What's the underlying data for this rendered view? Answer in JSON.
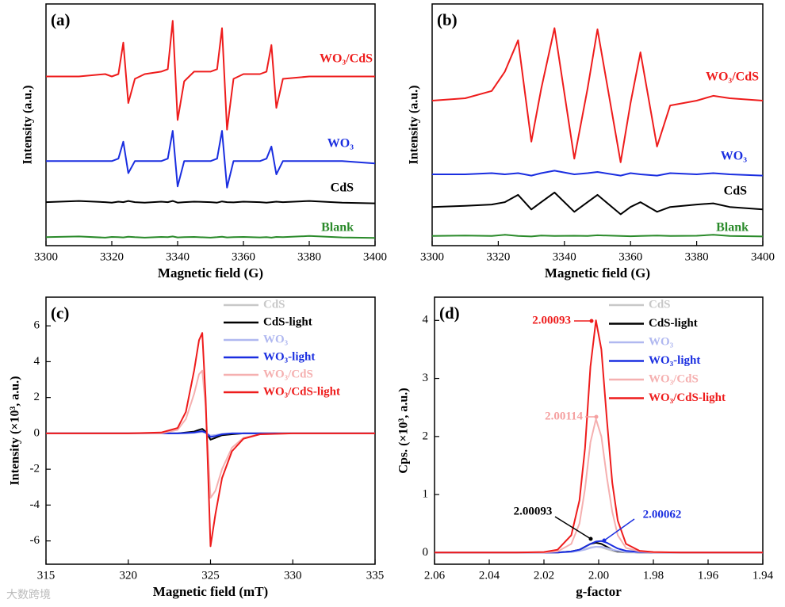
{
  "chart_data": [
    {
      "type": "line",
      "panel": "(a)",
      "xlabel": "Magnetic field (G)",
      "ylabel": "Intensity (a.u.)",
      "legend": "inline",
      "x": [
        3300,
        3310,
        3318,
        3320,
        3322,
        3323.5,
        3325,
        3327,
        3330,
        3335,
        3337,
        3338.5,
        3340,
        3342,
        3345,
        3350,
        3352,
        3353.5,
        3355,
        3357,
        3360,
        3365,
        3367,
        3368.5,
        3370,
        3372,
        3380,
        3390,
        3400
      ],
      "xlim": [
        3300,
        3400
      ],
      "xticks": [
        3300,
        3320,
        3340,
        3360,
        3380,
        3400
      ],
      "ylim": [
        0,
        10
      ],
      "series": [
        {
          "name": "WO₃/CdS",
          "color": "#ee1c1c",
          "values": [
            7.0,
            7.0,
            7.1,
            7.0,
            7.1,
            8.4,
            5.9,
            6.9,
            7.1,
            7.2,
            7.3,
            9.3,
            5.2,
            6.8,
            7.2,
            7.2,
            7.3,
            9.0,
            4.8,
            6.9,
            7.1,
            7.1,
            7.2,
            8.3,
            5.7,
            6.9,
            7.0,
            7.0,
            7.0
          ]
        },
        {
          "name": "WO₃",
          "color": "#1a2ee0",
          "values": [
            3.5,
            3.5,
            3.5,
            3.5,
            3.6,
            4.3,
            3.0,
            3.5,
            3.5,
            3.5,
            3.6,
            4.75,
            2.45,
            3.5,
            3.5,
            3.5,
            3.6,
            4.75,
            2.4,
            3.5,
            3.5,
            3.5,
            3.6,
            4.1,
            2.95,
            3.5,
            3.5,
            3.5,
            3.4
          ]
        },
        {
          "name": "CdS",
          "color": "#000000",
          "values": [
            1.8,
            1.85,
            1.8,
            1.78,
            1.82,
            1.8,
            1.85,
            1.8,
            1.78,
            1.82,
            1.8,
            1.85,
            1.78,
            1.8,
            1.82,
            1.8,
            1.78,
            1.83,
            1.8,
            1.79,
            1.82,
            1.8,
            1.78,
            1.8,
            1.82,
            1.8,
            1.85,
            1.78,
            1.75
          ]
        },
        {
          "name": "Blank",
          "color": "#2a8a2a",
          "values": [
            0.35,
            0.38,
            0.33,
            0.36,
            0.35,
            0.34,
            0.37,
            0.35,
            0.33,
            0.36,
            0.35,
            0.38,
            0.34,
            0.35,
            0.36,
            0.33,
            0.35,
            0.37,
            0.34,
            0.35,
            0.36,
            0.34,
            0.35,
            0.33,
            0.36,
            0.35,
            0.4,
            0.34,
            0.32
          ]
        }
      ]
    },
    {
      "type": "line",
      "panel": "(b)",
      "xlabel": "Magnetic field (G)",
      "ylabel": "Intensity (a.u.)",
      "legend": "inline",
      "x": [
        3300,
        3310,
        3318,
        3322,
        3326,
        3330,
        3333,
        3337,
        3343,
        3347,
        3350,
        3357,
        3360,
        3363,
        3368,
        3372,
        3380,
        3385,
        3390,
        3400
      ],
      "xlim": [
        3300,
        3400
      ],
      "xticks": [
        3300,
        3320,
        3340,
        3360,
        3380,
        3400
      ],
      "ylim": [
        0,
        10
      ],
      "series": [
        {
          "name": "WO₃/CdS",
          "color": "#ee1c1c",
          "values": [
            6.0,
            6.1,
            6.4,
            7.2,
            8.5,
            4.3,
            6.5,
            9.0,
            3.6,
            6.5,
            8.95,
            3.45,
            5.9,
            8.0,
            4.1,
            5.8,
            6.0,
            6.2,
            6.1,
            6.0
          ]
        },
        {
          "name": "WO₃",
          "color": "#1a2ee0",
          "values": [
            2.95,
            2.95,
            3.0,
            2.95,
            3.0,
            2.9,
            3.0,
            3.1,
            2.95,
            3.0,
            3.05,
            2.9,
            3.0,
            2.95,
            2.9,
            3.0,
            2.95,
            3.0,
            2.95,
            2.9
          ]
        },
        {
          "name": "CdS",
          "color": "#000000",
          "values": [
            1.6,
            1.65,
            1.7,
            1.8,
            2.1,
            1.5,
            1.8,
            2.2,
            1.4,
            1.8,
            2.1,
            1.3,
            1.6,
            1.8,
            1.4,
            1.6,
            1.7,
            1.75,
            1.6,
            1.5
          ]
        },
        {
          "name": "Blank",
          "color": "#2a8a2a",
          "values": [
            0.4,
            0.42,
            0.4,
            0.45,
            0.4,
            0.38,
            0.42,
            0.4,
            0.41,
            0.4,
            0.43,
            0.4,
            0.39,
            0.4,
            0.42,
            0.4,
            0.41,
            0.45,
            0.4,
            0.38
          ]
        }
      ]
    },
    {
      "type": "line",
      "panel": "(c)",
      "xlabel": "Magnetic field (mT)",
      "ylabel": "Intensity (×10³, a.u.)",
      "legend": "upper right",
      "x": [
        315,
        320,
        322,
        323,
        323.5,
        324,
        324.3,
        324.5,
        324.7,
        325,
        325.3,
        325.7,
        326.3,
        327,
        328,
        330,
        335
      ],
      "xlim": [
        315,
        335
      ],
      "xticks": [
        315,
        320,
        325,
        330,
        335
      ],
      "ylim": [
        -7.3,
        7.6
      ],
      "yticks": [
        -6,
        -4,
        -2,
        0,
        2,
        4,
        6
      ],
      "series": [
        {
          "name": "CdS",
          "color": "#c8c8c8",
          "values": [
            0,
            0,
            0,
            0,
            0.03,
            0.06,
            0.12,
            0.15,
            0.06,
            -0.2,
            -0.15,
            -0.06,
            -0.03,
            0,
            0,
            0,
            0
          ]
        },
        {
          "name": "CdS-light",
          "color": "#000000",
          "values": [
            0,
            0,
            0,
            0,
            0.05,
            0.1,
            0.2,
            0.25,
            0.1,
            -0.35,
            -0.25,
            -0.1,
            -0.05,
            0,
            0,
            0,
            0
          ]
        },
        {
          "name": "WO₃",
          "color": "#b0b8f0",
          "values": [
            0,
            0,
            0,
            0,
            0.01,
            0.03,
            0.06,
            0.08,
            0.03,
            -0.12,
            -0.09,
            -0.03,
            0,
            0,
            0,
            0,
            0
          ]
        },
        {
          "name": "WO₃-light",
          "color": "#1a2ee0",
          "values": [
            0,
            0,
            0,
            0,
            0.02,
            0.05,
            0.1,
            0.12,
            0.05,
            -0.2,
            -0.15,
            -0.05,
            0,
            0,
            0,
            0,
            0
          ]
        },
        {
          "name": "WO₃/CdS",
          "color": "#f5b0b0",
          "values": [
            0,
            0,
            0,
            0.2,
            0.8,
            2.2,
            3.3,
            3.5,
            1.5,
            -3.6,
            -3.2,
            -2,
            -0.8,
            -0.25,
            -0.05,
            0,
            0
          ]
        },
        {
          "name": "WO₃/CdS-light",
          "color": "#ee1c1c",
          "values": [
            0,
            0,
            0.05,
            0.3,
            1.2,
            3.5,
            5.2,
            5.6,
            2,
            -6.3,
            -4.5,
            -2.5,
            -1.0,
            -0.3,
            -0.05,
            0,
            0
          ]
        }
      ]
    },
    {
      "type": "line",
      "panel": "(d)",
      "xlabel": "g-factor",
      "ylabel": "Cps. (×10³, a.u.)",
      "legend": "upper right",
      "x": [
        2.06,
        2.03,
        2.02,
        2.015,
        2.01,
        2.007,
        2.005,
        2.003,
        2.001,
        1.999,
        1.997,
        1.995,
        1.993,
        1.99,
        1.985,
        1.98,
        1.97,
        1.94
      ],
      "xlim": [
        2.06,
        1.94
      ],
      "xticks": [
        {
          "value": 2.06,
          "label": "2.06"
        },
        {
          "value": 2.04,
          "label": "2.04"
        },
        {
          "value": 2.02,
          "label": "2.02"
        },
        {
          "value": 2.0,
          "label": "2.00"
        },
        {
          "value": 1.98,
          "label": "1.98"
        },
        {
          "value": 1.96,
          "label": "1.96"
        },
        {
          "value": 1.94,
          "label": "1.94"
        }
      ],
      "ylim": [
        -0.2,
        4.4
      ],
      "yticks": [
        0,
        1,
        2,
        3,
        4
      ],
      "series": [
        {
          "name": "CdS",
          "color": "#c8c8c8",
          "values": [
            0,
            0,
            0,
            0,
            0.01,
            0.03,
            0.06,
            0.09,
            0.1,
            0.09,
            0.06,
            0.03,
            0.01,
            0,
            0,
            0,
            0,
            0
          ]
        },
        {
          "name": "CdS-light",
          "color": "#000000",
          "values": [
            0,
            0,
            0,
            0,
            0.02,
            0.05,
            0.1,
            0.15,
            0.17,
            0.15,
            0.1,
            0.05,
            0.02,
            0.01,
            0,
            0,
            0,
            0
          ]
        },
        {
          "name": "WO₃",
          "color": "#b0b8f0",
          "values": [
            0,
            0,
            0,
            0,
            0.01,
            0.03,
            0.05,
            0.08,
            0.1,
            0.1,
            0.08,
            0.05,
            0.03,
            0.01,
            0,
            0,
            0,
            0
          ]
        },
        {
          "name": "WO₃-light",
          "color": "#1a2ee0",
          "values": [
            0,
            0,
            0,
            0,
            0.02,
            0.05,
            0.1,
            0.15,
            0.19,
            0.2,
            0.17,
            0.12,
            0.07,
            0.03,
            0.01,
            0,
            0,
            0
          ]
        },
        {
          "name": "WO₃/CdS",
          "color": "#f5b0b0",
          "values": [
            0,
            0,
            0,
            0.02,
            0.15,
            0.5,
            1.1,
            1.9,
            2.3,
            2.0,
            1.3,
            0.7,
            0.3,
            0.08,
            0.02,
            0,
            0,
            0
          ]
        },
        {
          "name": "WO₃/CdS-light",
          "color": "#ee1c1c",
          "values": [
            0,
            0,
            0.01,
            0.05,
            0.3,
            0.9,
            1.8,
            3.2,
            4.0,
            3.5,
            2.3,
            1.2,
            0.55,
            0.15,
            0.03,
            0.01,
            0,
            0
          ]
        }
      ],
      "annotations": [
        {
          "text": "2.00093",
          "color": "#ee1c1c"
        },
        {
          "text": "2.00114",
          "color": "#f5a0a0"
        },
        {
          "text": "2.00093",
          "color": "#000000"
        },
        {
          "text": "2.00062",
          "color": "#1a2ee0"
        }
      ]
    }
  ],
  "watermark": "大数跨境"
}
